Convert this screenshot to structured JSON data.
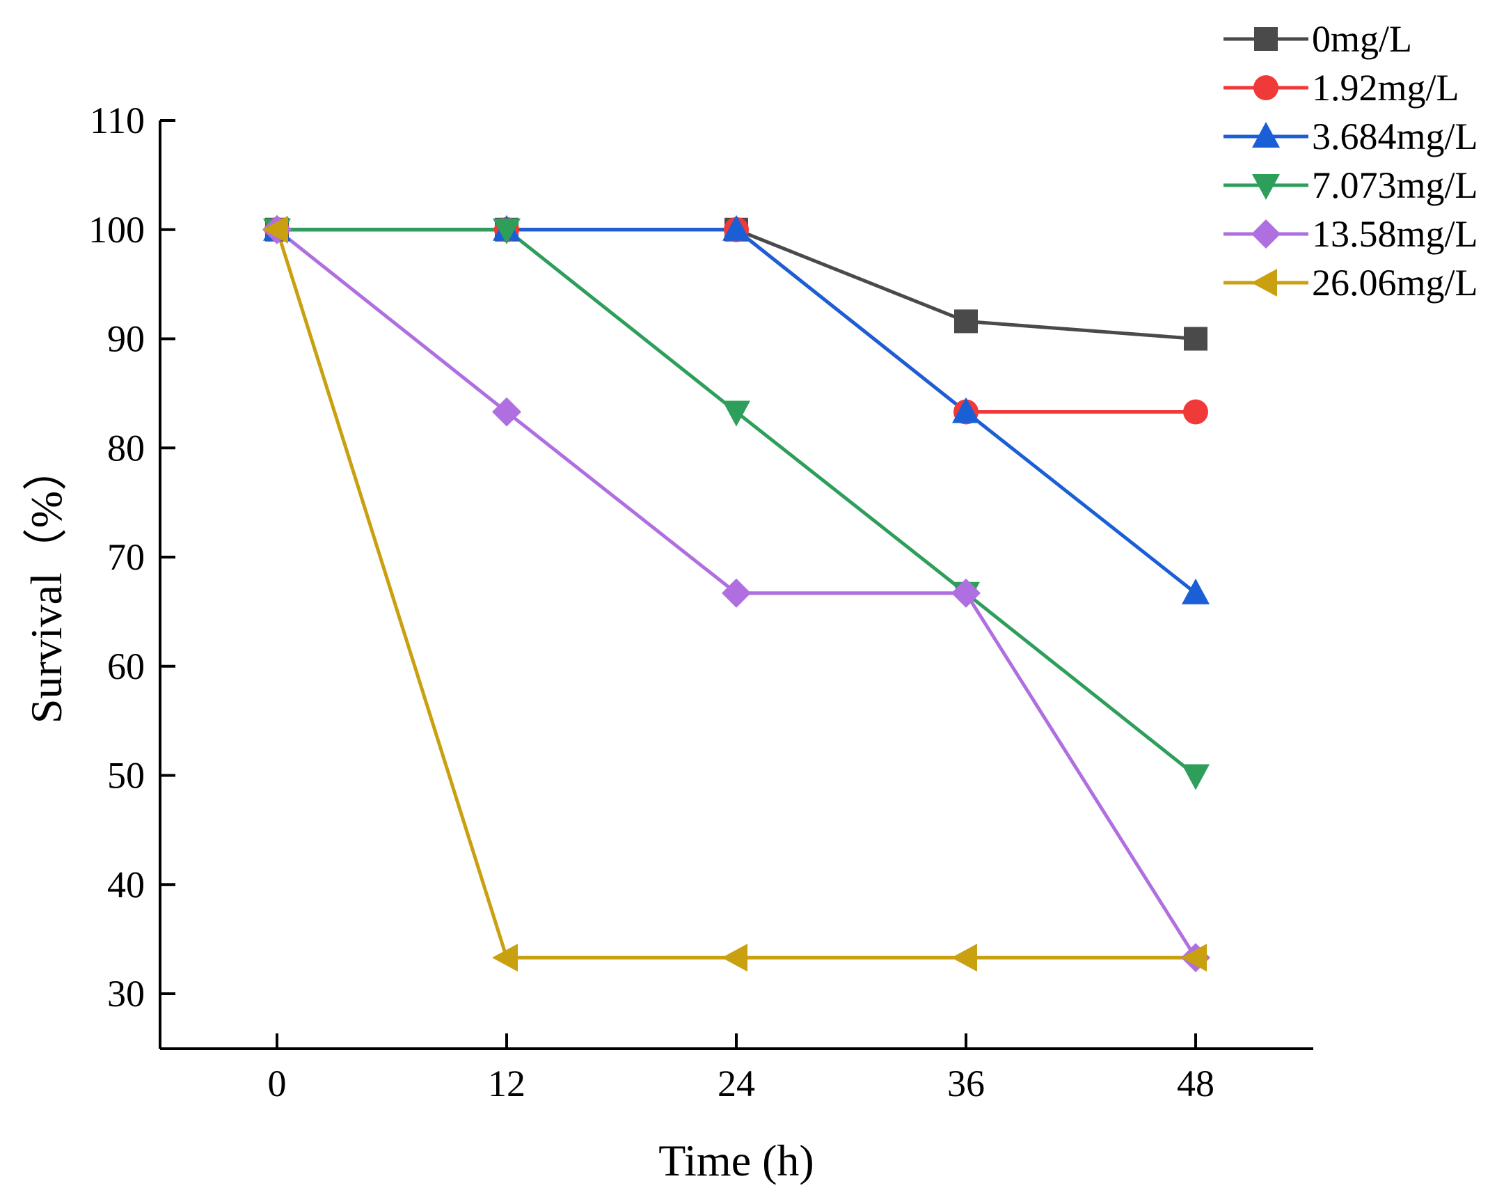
{
  "chart_data": {
    "type": "line",
    "title": "",
    "xlabel": "Time (h)",
    "ylabel": "Survival（%）",
    "x": [
      0,
      12,
      24,
      36,
      48
    ],
    "x_tick_labels": [
      "0",
      "12",
      "24",
      "36",
      "48"
    ],
    "xlim": [
      -6,
      54
    ],
    "ylim": [
      25,
      110
    ],
    "y_ticks": [
      30,
      40,
      50,
      60,
      70,
      80,
      90,
      100,
      110
    ],
    "y_tick_labels": [
      "30",
      "40",
      "50",
      "60",
      "70",
      "80",
      "90",
      "100",
      "110"
    ],
    "grid": false,
    "legend_position": "top-right",
    "series": [
      {
        "name": "0mg/L",
        "color": "#4a4a4a",
        "marker": "square",
        "values": [
          100,
          100,
          100,
          91.6,
          90
        ]
      },
      {
        "name": "1.92mg/L",
        "color": "#f03a3a",
        "marker": "circle",
        "values": [
          100,
          100,
          100,
          83.3,
          83.3
        ]
      },
      {
        "name": "3.684mg/L",
        "color": "#1a5fd6",
        "marker": "triangle-up",
        "values": [
          100,
          100,
          100,
          83.3,
          66.7
        ]
      },
      {
        "name": "7.073mg/L",
        "color": "#2e9e5b",
        "marker": "triangle-down",
        "values": [
          100,
          100,
          83.3,
          66.7,
          50
        ]
      },
      {
        "name": "13.58mg/L",
        "color": "#b06fe0",
        "marker": "diamond",
        "values": [
          100,
          83.3,
          66.7,
          66.7,
          33.3
        ]
      },
      {
        "name": "26.06mg/L",
        "color": "#c9a010",
        "marker": "triangle-left",
        "values": [
          100,
          33.3,
          33.3,
          33.3,
          33.3
        ]
      }
    ]
  }
}
